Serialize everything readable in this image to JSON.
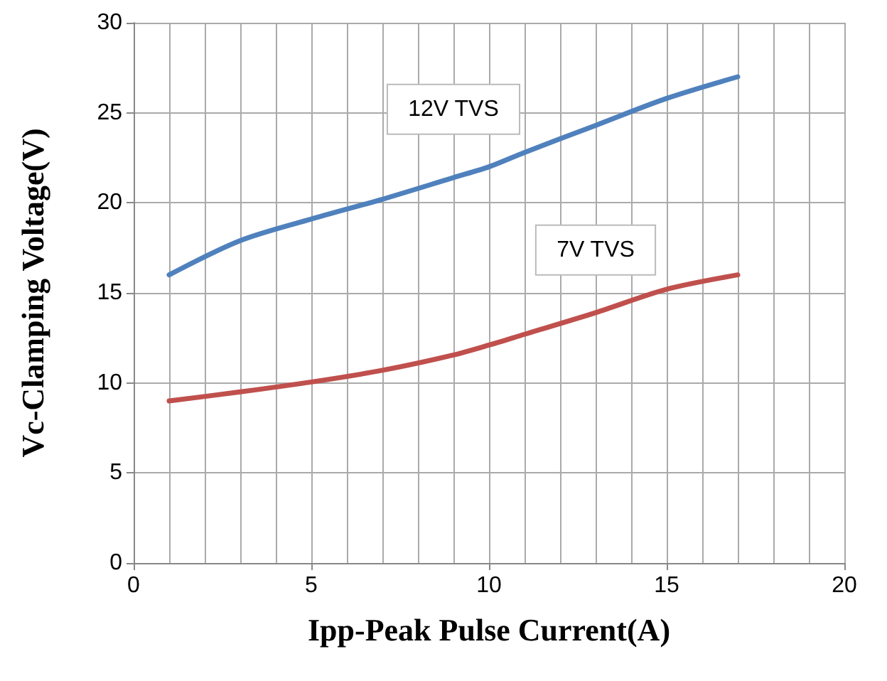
{
  "chart_data": {
    "type": "line",
    "xlabel": "Ipp-Peak Pulse Current(A)",
    "ylabel": "Vc-Clamping Voltage(V)",
    "x": [
      1,
      3,
      5,
      7,
      9,
      10,
      11,
      13,
      15,
      17
    ],
    "series": [
      {
        "name": "12V TVS",
        "color": "#4f81bd",
        "values": [
          16.0,
          17.9,
          19.1,
          20.2,
          21.4,
          22.0,
          22.8,
          24.3,
          25.8,
          27.0
        ]
      },
      {
        "name": "7V TVS",
        "color": "#c0504d",
        "values": [
          9.0,
          9.5,
          10.05,
          10.7,
          11.55,
          12.1,
          12.7,
          13.9,
          15.2,
          16.0
        ]
      }
    ],
    "xlim": [
      0,
      20
    ],
    "xticks": [
      0,
      5,
      10,
      15,
      20
    ],
    "ylim": [
      0,
      30
    ],
    "yticks": [
      0,
      5,
      10,
      15,
      20,
      25,
      30
    ],
    "grid": true,
    "legend": false,
    "marker": "none",
    "line_style": "solid"
  }
}
